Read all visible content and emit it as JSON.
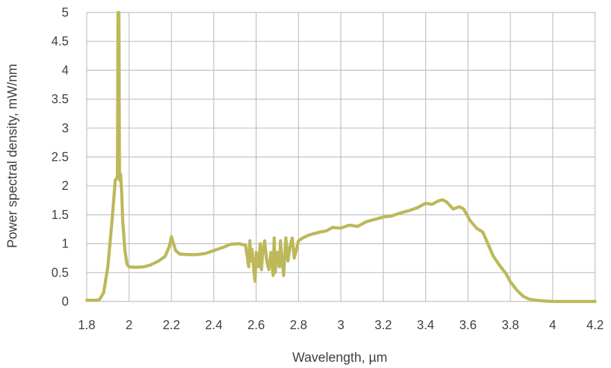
{
  "chart_data": {
    "type": "line",
    "title": "",
    "xlabel": "Wavelength, µm",
    "ylabel": "Power spectral density, mW/nm",
    "xlim": [
      1.8,
      4.2
    ],
    "ylim": [
      0,
      5
    ],
    "x_ticks": [
      "1.8",
      "2",
      "2.2",
      "2.4",
      "2.6",
      "2.8",
      "3",
      "3.2",
      "3.4",
      "3.6",
      "3.8",
      "4",
      "4.2"
    ],
    "y_ticks": [
      "0",
      "0.5",
      "1",
      "1.5",
      "2",
      "2.5",
      "3",
      "3.5",
      "4",
      "4.5",
      "5"
    ],
    "grid": true,
    "legend": "none",
    "series": [
      {
        "color": "#BDB85A",
        "points": [
          [
            1.8,
            0.02
          ],
          [
            1.84,
            0.02
          ],
          [
            1.86,
            0.03
          ],
          [
            1.88,
            0.15
          ],
          [
            1.9,
            0.6
          ],
          [
            1.92,
            1.4
          ],
          [
            1.935,
            2.1
          ],
          [
            1.945,
            2.15
          ],
          [
            1.948,
            5.0
          ],
          [
            1.952,
            5.0
          ],
          [
            1.955,
            2.1
          ],
          [
            1.96,
            2.2
          ],
          [
            1.965,
            1.9
          ],
          [
            1.97,
            1.4
          ],
          [
            1.98,
            0.9
          ],
          [
            1.99,
            0.65
          ],
          [
            2.0,
            0.6
          ],
          [
            2.03,
            0.59
          ],
          [
            2.07,
            0.6
          ],
          [
            2.1,
            0.63
          ],
          [
            2.14,
            0.7
          ],
          [
            2.17,
            0.78
          ],
          [
            2.19,
            0.95
          ],
          [
            2.2,
            1.12
          ],
          [
            2.21,
            1.0
          ],
          [
            2.22,
            0.88
          ],
          [
            2.24,
            0.82
          ],
          [
            2.28,
            0.81
          ],
          [
            2.32,
            0.81
          ],
          [
            2.36,
            0.83
          ],
          [
            2.4,
            0.88
          ],
          [
            2.44,
            0.93
          ],
          [
            2.48,
            0.99
          ],
          [
            2.52,
            1.0
          ],
          [
            2.55,
            0.97
          ],
          [
            2.565,
            0.6
          ],
          [
            2.57,
            1.05
          ],
          [
            2.575,
            0.7
          ],
          [
            2.58,
            0.9
          ],
          [
            2.59,
            0.5
          ],
          [
            2.595,
            0.35
          ],
          [
            2.6,
            0.85
          ],
          [
            2.61,
            0.6
          ],
          [
            2.62,
            1.0
          ],
          [
            2.625,
            0.55
          ],
          [
            2.63,
            0.8
          ],
          [
            2.64,
            1.05
          ],
          [
            2.65,
            0.7
          ],
          [
            2.66,
            0.55
          ],
          [
            2.67,
            0.85
          ],
          [
            2.68,
            0.45
          ],
          [
            2.685,
            1.1
          ],
          [
            2.69,
            0.5
          ],
          [
            2.7,
            0.85
          ],
          [
            2.71,
            0.6
          ],
          [
            2.715,
            1.05
          ],
          [
            2.72,
            0.8
          ],
          [
            2.73,
            0.45
          ],
          [
            2.74,
            1.1
          ],
          [
            2.75,
            0.7
          ],
          [
            2.76,
            0.95
          ],
          [
            2.77,
            1.1
          ],
          [
            2.78,
            0.75
          ],
          [
            2.79,
            0.9
          ],
          [
            2.8,
            1.05
          ],
          [
            2.82,
            1.1
          ],
          [
            2.85,
            1.15
          ],
          [
            2.88,
            1.18
          ],
          [
            2.9,
            1.2
          ],
          [
            2.93,
            1.22
          ],
          [
            2.96,
            1.28
          ],
          [
            3.0,
            1.27
          ],
          [
            3.04,
            1.32
          ],
          [
            3.08,
            1.3
          ],
          [
            3.12,
            1.38
          ],
          [
            3.16,
            1.42
          ],
          [
            3.2,
            1.46
          ],
          [
            3.24,
            1.48
          ],
          [
            3.28,
            1.53
          ],
          [
            3.32,
            1.57
          ],
          [
            3.36,
            1.62
          ],
          [
            3.4,
            1.7
          ],
          [
            3.43,
            1.68
          ],
          [
            3.46,
            1.74
          ],
          [
            3.48,
            1.76
          ],
          [
            3.5,
            1.72
          ],
          [
            3.53,
            1.6
          ],
          [
            3.56,
            1.64
          ],
          [
            3.58,
            1.6
          ],
          [
            3.61,
            1.4
          ],
          [
            3.64,
            1.27
          ],
          [
            3.67,
            1.2
          ],
          [
            3.7,
            0.95
          ],
          [
            3.72,
            0.78
          ],
          [
            3.75,
            0.62
          ],
          [
            3.78,
            0.48
          ],
          [
            3.8,
            0.34
          ],
          [
            3.83,
            0.2
          ],
          [
            3.86,
            0.09
          ],
          [
            3.89,
            0.04
          ],
          [
            3.92,
            0.02
          ],
          [
            3.96,
            0.01
          ],
          [
            4.0,
            0.0
          ],
          [
            4.1,
            0.0
          ],
          [
            4.2,
            0.0
          ]
        ]
      }
    ]
  }
}
